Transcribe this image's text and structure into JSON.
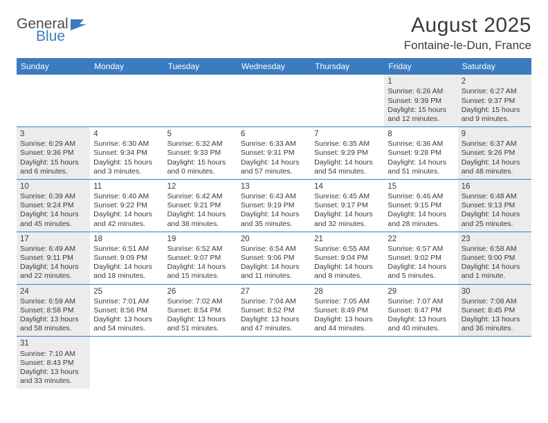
{
  "logo": {
    "part1": "General",
    "part2": "Blue"
  },
  "title": "August 2025",
  "location": "Fontaine-le-Dun, France",
  "colors": {
    "header_bg": "#3b7bbf",
    "header_text": "#ffffff",
    "shaded_bg": "#ececec",
    "border": "#3b7bbf",
    "text": "#3a3a3a"
  },
  "dow": [
    "Sunday",
    "Monday",
    "Tuesday",
    "Wednesday",
    "Thursday",
    "Friday",
    "Saturday"
  ],
  "weeks": [
    [
      {
        "day": "",
        "shaded": false
      },
      {
        "day": "",
        "shaded": false
      },
      {
        "day": "",
        "shaded": false
      },
      {
        "day": "",
        "shaded": false
      },
      {
        "day": "",
        "shaded": false
      },
      {
        "day": "1",
        "shaded": true,
        "sunrise": "Sunrise: 6:26 AM",
        "sunset": "Sunset: 9:39 PM",
        "daylight1": "Daylight: 15 hours",
        "daylight2": "and 12 minutes."
      },
      {
        "day": "2",
        "shaded": true,
        "sunrise": "Sunrise: 6:27 AM",
        "sunset": "Sunset: 9:37 PM",
        "daylight1": "Daylight: 15 hours",
        "daylight2": "and 9 minutes."
      }
    ],
    [
      {
        "day": "3",
        "shaded": true,
        "sunrise": "Sunrise: 6:29 AM",
        "sunset": "Sunset: 9:36 PM",
        "daylight1": "Daylight: 15 hours",
        "daylight2": "and 6 minutes."
      },
      {
        "day": "4",
        "shaded": false,
        "sunrise": "Sunrise: 6:30 AM",
        "sunset": "Sunset: 9:34 PM",
        "daylight1": "Daylight: 15 hours",
        "daylight2": "and 3 minutes."
      },
      {
        "day": "5",
        "shaded": false,
        "sunrise": "Sunrise: 6:32 AM",
        "sunset": "Sunset: 9:33 PM",
        "daylight1": "Daylight: 15 hours",
        "daylight2": "and 0 minutes."
      },
      {
        "day": "6",
        "shaded": false,
        "sunrise": "Sunrise: 6:33 AM",
        "sunset": "Sunset: 9:31 PM",
        "daylight1": "Daylight: 14 hours",
        "daylight2": "and 57 minutes."
      },
      {
        "day": "7",
        "shaded": false,
        "sunrise": "Sunrise: 6:35 AM",
        "sunset": "Sunset: 9:29 PM",
        "daylight1": "Daylight: 14 hours",
        "daylight2": "and 54 minutes."
      },
      {
        "day": "8",
        "shaded": false,
        "sunrise": "Sunrise: 6:36 AM",
        "sunset": "Sunset: 9:28 PM",
        "daylight1": "Daylight: 14 hours",
        "daylight2": "and 51 minutes."
      },
      {
        "day": "9",
        "shaded": true,
        "sunrise": "Sunrise: 6:37 AM",
        "sunset": "Sunset: 9:26 PM",
        "daylight1": "Daylight: 14 hours",
        "daylight2": "and 48 minutes."
      }
    ],
    [
      {
        "day": "10",
        "shaded": true,
        "sunrise": "Sunrise: 6:39 AM",
        "sunset": "Sunset: 9:24 PM",
        "daylight1": "Daylight: 14 hours",
        "daylight2": "and 45 minutes."
      },
      {
        "day": "11",
        "shaded": false,
        "sunrise": "Sunrise: 6:40 AM",
        "sunset": "Sunset: 9:22 PM",
        "daylight1": "Daylight: 14 hours",
        "daylight2": "and 42 minutes."
      },
      {
        "day": "12",
        "shaded": false,
        "sunrise": "Sunrise: 6:42 AM",
        "sunset": "Sunset: 9:21 PM",
        "daylight1": "Daylight: 14 hours",
        "daylight2": "and 38 minutes."
      },
      {
        "day": "13",
        "shaded": false,
        "sunrise": "Sunrise: 6:43 AM",
        "sunset": "Sunset: 9:19 PM",
        "daylight1": "Daylight: 14 hours",
        "daylight2": "and 35 minutes."
      },
      {
        "day": "14",
        "shaded": false,
        "sunrise": "Sunrise: 6:45 AM",
        "sunset": "Sunset: 9:17 PM",
        "daylight1": "Daylight: 14 hours",
        "daylight2": "and 32 minutes."
      },
      {
        "day": "15",
        "shaded": false,
        "sunrise": "Sunrise: 6:46 AM",
        "sunset": "Sunset: 9:15 PM",
        "daylight1": "Daylight: 14 hours",
        "daylight2": "and 28 minutes."
      },
      {
        "day": "16",
        "shaded": true,
        "sunrise": "Sunrise: 6:48 AM",
        "sunset": "Sunset: 9:13 PM",
        "daylight1": "Daylight: 14 hours",
        "daylight2": "and 25 minutes."
      }
    ],
    [
      {
        "day": "17",
        "shaded": true,
        "sunrise": "Sunrise: 6:49 AM",
        "sunset": "Sunset: 9:11 PM",
        "daylight1": "Daylight: 14 hours",
        "daylight2": "and 22 minutes."
      },
      {
        "day": "18",
        "shaded": false,
        "sunrise": "Sunrise: 6:51 AM",
        "sunset": "Sunset: 9:09 PM",
        "daylight1": "Daylight: 14 hours",
        "daylight2": "and 18 minutes."
      },
      {
        "day": "19",
        "shaded": false,
        "sunrise": "Sunrise: 6:52 AM",
        "sunset": "Sunset: 9:07 PM",
        "daylight1": "Daylight: 14 hours",
        "daylight2": "and 15 minutes."
      },
      {
        "day": "20",
        "shaded": false,
        "sunrise": "Sunrise: 6:54 AM",
        "sunset": "Sunset: 9:06 PM",
        "daylight1": "Daylight: 14 hours",
        "daylight2": "and 11 minutes."
      },
      {
        "day": "21",
        "shaded": false,
        "sunrise": "Sunrise: 6:55 AM",
        "sunset": "Sunset: 9:04 PM",
        "daylight1": "Daylight: 14 hours",
        "daylight2": "and 8 minutes."
      },
      {
        "day": "22",
        "shaded": false,
        "sunrise": "Sunrise: 6:57 AM",
        "sunset": "Sunset: 9:02 PM",
        "daylight1": "Daylight: 14 hours",
        "daylight2": "and 5 minutes."
      },
      {
        "day": "23",
        "shaded": true,
        "sunrise": "Sunrise: 6:58 AM",
        "sunset": "Sunset: 9:00 PM",
        "daylight1": "Daylight: 14 hours",
        "daylight2": "and 1 minute."
      }
    ],
    [
      {
        "day": "24",
        "shaded": true,
        "sunrise": "Sunrise: 6:59 AM",
        "sunset": "Sunset: 8:58 PM",
        "daylight1": "Daylight: 13 hours",
        "daylight2": "and 58 minutes."
      },
      {
        "day": "25",
        "shaded": false,
        "sunrise": "Sunrise: 7:01 AM",
        "sunset": "Sunset: 8:56 PM",
        "daylight1": "Daylight: 13 hours",
        "daylight2": "and 54 minutes."
      },
      {
        "day": "26",
        "shaded": false,
        "sunrise": "Sunrise: 7:02 AM",
        "sunset": "Sunset: 8:54 PM",
        "daylight1": "Daylight: 13 hours",
        "daylight2": "and 51 minutes."
      },
      {
        "day": "27",
        "shaded": false,
        "sunrise": "Sunrise: 7:04 AM",
        "sunset": "Sunset: 8:52 PM",
        "daylight1": "Daylight: 13 hours",
        "daylight2": "and 47 minutes."
      },
      {
        "day": "28",
        "shaded": false,
        "sunrise": "Sunrise: 7:05 AM",
        "sunset": "Sunset: 8:49 PM",
        "daylight1": "Daylight: 13 hours",
        "daylight2": "and 44 minutes."
      },
      {
        "day": "29",
        "shaded": false,
        "sunrise": "Sunrise: 7:07 AM",
        "sunset": "Sunset: 8:47 PM",
        "daylight1": "Daylight: 13 hours",
        "daylight2": "and 40 minutes."
      },
      {
        "day": "30",
        "shaded": true,
        "sunrise": "Sunrise: 7:08 AM",
        "sunset": "Sunset: 8:45 PM",
        "daylight1": "Daylight: 13 hours",
        "daylight2": "and 36 minutes."
      }
    ],
    [
      {
        "day": "31",
        "shaded": true,
        "sunrise": "Sunrise: 7:10 AM",
        "sunset": "Sunset: 8:43 PM",
        "daylight1": "Daylight: 13 hours",
        "daylight2": "and 33 minutes."
      },
      {
        "day": "",
        "shaded": false
      },
      {
        "day": "",
        "shaded": false
      },
      {
        "day": "",
        "shaded": false
      },
      {
        "day": "",
        "shaded": false
      },
      {
        "day": "",
        "shaded": false
      },
      {
        "day": "",
        "shaded": false
      }
    ]
  ]
}
